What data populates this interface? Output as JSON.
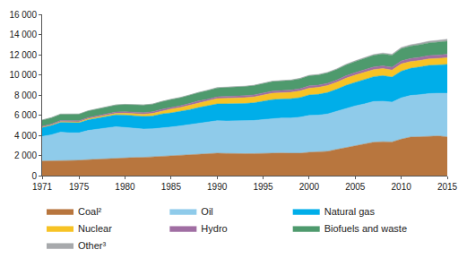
{
  "chart_data": {
    "type": "area",
    "stacked": true,
    "grid": false,
    "legend": "bottom",
    "x": [
      1971,
      1972,
      1973,
      1974,
      1975,
      1976,
      1977,
      1978,
      1979,
      1980,
      1981,
      1982,
      1983,
      1984,
      1985,
      1986,
      1987,
      1988,
      1989,
      1990,
      1991,
      1992,
      1993,
      1994,
      1995,
      1996,
      1997,
      1998,
      1999,
      2000,
      2001,
      2002,
      2003,
      2004,
      2005,
      2006,
      2007,
      2008,
      2009,
      2010,
      2011,
      2012,
      2013,
      2014,
      2015
    ],
    "xlim": [
      1971,
      2015
    ],
    "xticks": [
      1971,
      1975,
      1980,
      1985,
      1990,
      1995,
      2000,
      2005,
      2010,
      2015
    ],
    "ylim": [
      0,
      16000
    ],
    "yticks": [
      0,
      {
        "value": 2000,
        "label": "2 000"
      },
      {
        "value": 4000,
        "label": "4 000"
      },
      {
        "value": 6000,
        "label": "6 000"
      },
      {
        "value": 8000,
        "label": "8 000"
      },
      {
        "value": 10000,
        "label": "10 000"
      },
      {
        "value": 12000,
        "label": "12 000"
      },
      {
        "value": 14000,
        "label": "14 000"
      },
      {
        "value": 16000,
        "label": "16 000"
      }
    ],
    "series": [
      {
        "name": "Coal²",
        "color": "#b8763e",
        "values": [
          1440,
          1450,
          1500,
          1490,
          1520,
          1580,
          1630,
          1660,
          1740,
          1780,
          1790,
          1810,
          1860,
          1940,
          2010,
          2040,
          2110,
          2160,
          2190,
          2220,
          2200,
          2170,
          2170,
          2180,
          2210,
          2240,
          2240,
          2220,
          2220,
          2310,
          2330,
          2410,
          2600,
          2780,
          2970,
          3130,
          3310,
          3360,
          3340,
          3620,
          3820,
          3850,
          3920,
          3930,
          3840
        ]
      },
      {
        "name": "Oil",
        "color": "#8fcbea",
        "values": [
          2440,
          2600,
          2820,
          2760,
          2730,
          2900,
          2980,
          3070,
          3110,
          3000,
          2900,
          2810,
          2780,
          2820,
          2810,
          2890,
          2940,
          3040,
          3090,
          3230,
          3220,
          3250,
          3240,
          3290,
          3350,
          3420,
          3480,
          3500,
          3570,
          3660,
          3670,
          3710,
          3780,
          3900,
          3950,
          3990,
          4040,
          4020,
          3950,
          4100,
          4130,
          4180,
          4220,
          4240,
          4330
        ]
      },
      {
        "name": "Natural gas",
        "color": "#00aee9",
        "values": [
          890,
          930,
          980,
          1000,
          1000,
          1060,
          1090,
          1120,
          1180,
          1230,
          1250,
          1250,
          1270,
          1360,
          1400,
          1420,
          1490,
          1550,
          1620,
          1660,
          1700,
          1710,
          1740,
          1750,
          1800,
          1880,
          1870,
          1900,
          1950,
          2030,
          2060,
          2120,
          2190,
          2270,
          2330,
          2380,
          2460,
          2530,
          2480,
          2640,
          2690,
          2750,
          2790,
          2800,
          2860
        ]
      },
      {
        "name": "Nuclear",
        "color": "#f7c325",
        "values": [
          30,
          40,
          53,
          60,
          80,
          95,
          110,
          130,
          140,
          186,
          200,
          230,
          260,
          300,
          380,
          410,
          450,
          490,
          510,
          526,
          550,
          560,
          580,
          590,
          610,
          630,
          630,
          640,
          660,
          676,
          690,
          700,
          690,
          715,
          720,
          730,
          710,
          712,
          703,
          719,
          674,
          642,
          646,
          661,
          670
        ]
      },
      {
        "name": "Hydro",
        "color": "#a06ea3",
        "values": [
          100,
          102,
          110,
          118,
          118,
          123,
          124,
          131,
          136,
          147,
          149,
          152,
          158,
          161,
          163,
          165,
          167,
          172,
          171,
          184,
          187,
          187,
          197,
          199,
          210,
          214,
          217,
          220,
          222,
          225,
          221,
          226,
          226,
          240,
          252,
          260,
          262,
          275,
          278,
          296,
          300,
          316,
          325,
          332,
          335
        ]
      },
      {
        "name": "Biofuels and waste",
        "color": "#4e9a6d",
        "values": [
          610,
          620,
          635,
          645,
          655,
          665,
          675,
          690,
          700,
          720,
          735,
          750,
          765,
          780,
          795,
          810,
          825,
          840,
          855,
          880,
          890,
          900,
          910,
          920,
          930,
          945,
          955,
          965,
          985,
          1000,
          1010,
          1025,
          1045,
          1070,
          1095,
          1120,
          1145,
          1170,
          1190,
          1215,
          1230,
          1250,
          1265,
          1280,
          1290
        ]
      },
      {
        "name": "Other³",
        "color": "#a7a9ac",
        "values": [
          5,
          5,
          6,
          6,
          7,
          8,
          9,
          10,
          11,
          12,
          13,
          14,
          16,
          18,
          21,
          24,
          27,
          30,
          33,
          36,
          37,
          38,
          39,
          40,
          42,
          44,
          46,
          48,
          52,
          56,
          58,
          62,
          66,
          70,
          74,
          80,
          86,
          95,
          104,
          118,
          132,
          148,
          164,
          182,
          204
        ]
      }
    ]
  }
}
